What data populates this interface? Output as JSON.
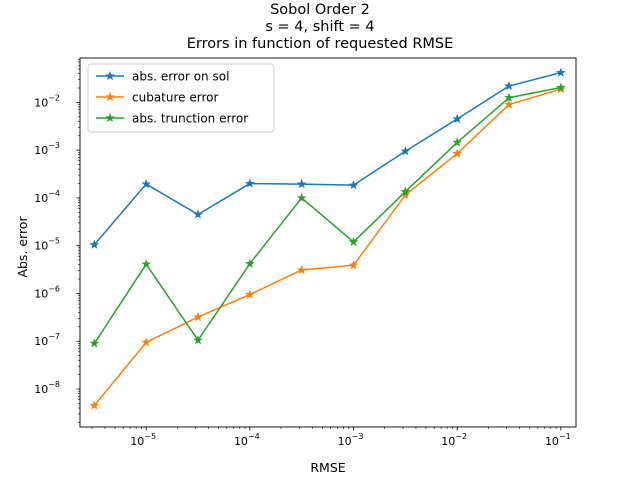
{
  "chart_data": {
    "type": "line",
    "title_lines": [
      "Sobol Order 2",
      "s = 4, shift = 4",
      "Errors in function of requested RMSE"
    ],
    "xlabel": "RMSE",
    "ylabel": "Abs. error",
    "xscale": "log",
    "yscale": "log",
    "xlim": [
      2.3e-06,
      0.14
    ],
    "ylim": [
      1.6e-09,
      0.085
    ],
    "x_ticks": [
      {
        "value": 1e-05,
        "base": "10",
        "exp": "−5"
      },
      {
        "value": 0.0001,
        "base": "10",
        "exp": "−4"
      },
      {
        "value": 0.001,
        "base": "10",
        "exp": "−3"
      },
      {
        "value": 0.01,
        "base": "10",
        "exp": "−2"
      },
      {
        "value": 0.1,
        "base": "10",
        "exp": "−1"
      }
    ],
    "y_ticks": [
      {
        "value": 1e-08,
        "base": "10",
        "exp": "−8"
      },
      {
        "value": 1e-07,
        "base": "10",
        "exp": "−7"
      },
      {
        "value": 1e-06,
        "base": "10",
        "exp": "−6"
      },
      {
        "value": 1e-05,
        "base": "10",
        "exp": "−5"
      },
      {
        "value": 0.0001,
        "base": "10",
        "exp": "−4"
      },
      {
        "value": 0.001,
        "base": "10",
        "exp": "−3"
      },
      {
        "value": 0.01,
        "base": "10",
        "exp": "−2"
      }
    ],
    "x": [
      3.162e-06,
      1e-05,
      3.162e-05,
      0.0001,
      0.0003162,
      0.001,
      0.003162,
      0.01,
      0.03162,
      0.1
    ],
    "series": [
      {
        "name": "abs. error on sol",
        "color": "#1f77b4",
        "values": [
          1.05e-05,
          0.000195,
          4.5e-05,
          0.0002,
          0.000195,
          0.000185,
          0.00095,
          0.0045,
          0.022,
          0.042
        ]
      },
      {
        "name": "cubature error",
        "color": "#ff7f0e",
        "values": [
          4.5e-09,
          9.5e-08,
          3.2e-07,
          9.5e-07,
          3.1e-06,
          3.9e-06,
          0.000115,
          0.00085,
          0.009,
          0.019
        ]
      },
      {
        "name": "abs. trunction error",
        "color": "#2ca02c",
        "values": [
          9e-08,
          4.1e-06,
          1.05e-07,
          4.2e-06,
          0.0001,
          1.2e-05,
          0.000135,
          0.00145,
          0.0125,
          0.0205
        ]
      }
    ],
    "legend_position": "upper-left",
    "grid": false,
    "marker": "star"
  }
}
